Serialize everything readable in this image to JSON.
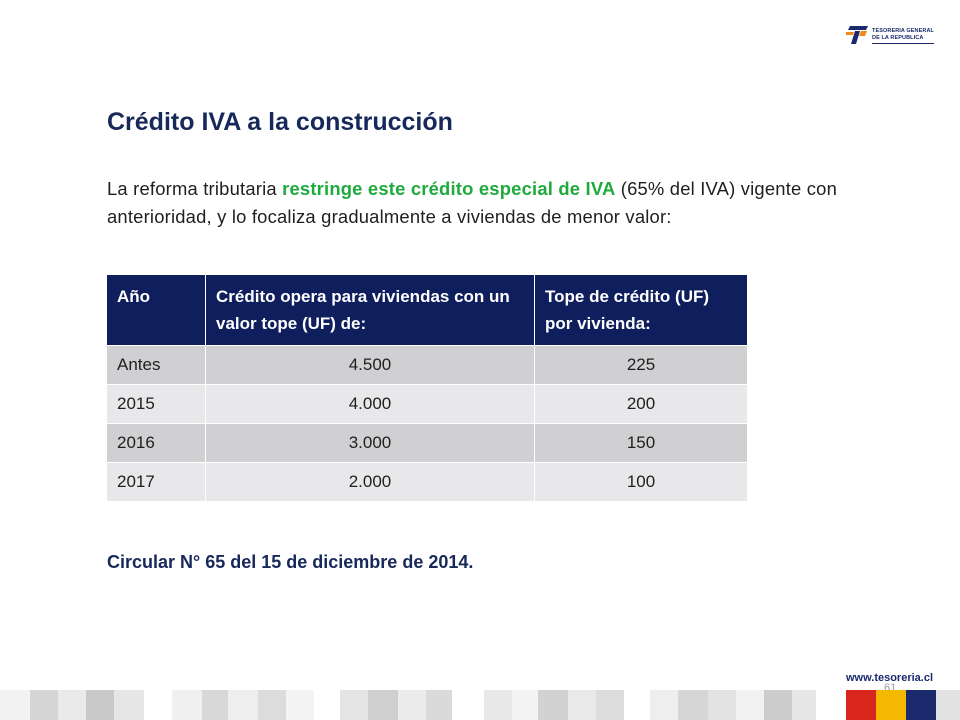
{
  "logo": {
    "line1": "TESORERIA GENERAL",
    "line2": "DE LA REPUBLICA",
    "icon": "tesoreria-logo-icon",
    "colors": {
      "blue": "#1a2a6c",
      "orange": "#f08a1c"
    }
  },
  "slide": {
    "title": "Crédito IVA a la construcción",
    "intro_before": "La reforma tributaria ",
    "intro_highlight": "restringe este crédito especial de IVA",
    "intro_after": " (65% del IVA) vigente con anterioridad, y lo focaliza gradualmente a viviendas de menor valor:",
    "footnote": "Circular N° 65 del 15 de diciembre de 2014."
  },
  "table": {
    "headers": [
      "Año",
      "Crédito opera para viviendas con un valor tope (UF) de:",
      "Tope de crédito (UF) por vivienda:"
    ],
    "rows": [
      [
        "Antes",
        "4.500",
        "225"
      ],
      [
        "2015",
        "4.000",
        "200"
      ],
      [
        "2016",
        "3.000",
        "150"
      ],
      [
        "2017",
        "2.000",
        "100"
      ]
    ]
  },
  "footer": {
    "website": "www.tesoreria.cl",
    "page_number": "61"
  },
  "colors": {
    "title": "#17285a",
    "highlight": "#1faa3d",
    "header_bg": "#0f1e5c",
    "row_dark": "#d0d0d3",
    "row_light": "#e8e8ea",
    "flag_red": "#d9261c",
    "flag_yellow": "#f5b800",
    "flag_blue": "#1a2a6c"
  }
}
